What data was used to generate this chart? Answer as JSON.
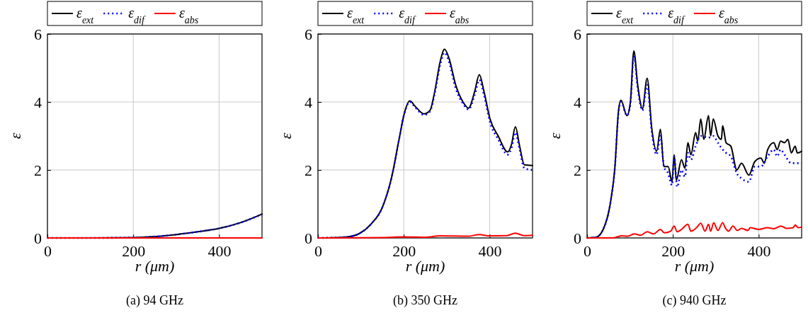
{
  "chart_data": [
    {
      "type": "line",
      "xlabel": "r (μm)",
      "ylabel": "ε",
      "annotations": [
        "(a) 94 GHz"
      ],
      "xlim": [
        0,
        500
      ],
      "ylim": [
        0,
        6
      ],
      "xticks": [
        0,
        200,
        400
      ],
      "yticks": [
        0,
        2,
        4,
        6
      ],
      "grid": true,
      "legend": "top",
      "series": [
        {
          "name": "ε$_{ext}$",
          "color": "#000000",
          "line_style": "solid",
          "x": [
            0,
            100,
            200,
            250,
            300,
            350,
            400,
            450,
            500
          ],
          "values": [
            0,
            0,
            0.01,
            0.04,
            0.1,
            0.18,
            0.28,
            0.45,
            0.7
          ]
        },
        {
          "name": "ε$_{dif}$",
          "color": "#0000ff",
          "line_style": "dotted",
          "x": [
            0,
            100,
            200,
            250,
            300,
            350,
            400,
            450,
            500
          ],
          "values": [
            0,
            0,
            0.01,
            0.04,
            0.1,
            0.18,
            0.28,
            0.45,
            0.7
          ]
        },
        {
          "name": "ε$_{abs}$",
          "color": "#ff0000",
          "line_style": "solid",
          "x": [
            0,
            250,
            500
          ],
          "values": [
            0,
            0,
            0
          ]
        }
      ]
    },
    {
      "type": "line",
      "xlabel": "r (μm)",
      "ylabel": "ε",
      "annotations": [
        "(b) 350 GHz"
      ],
      "xlim": [
        0,
        500
      ],
      "ylim": [
        0,
        6
      ],
      "xticks": [
        0,
        200,
        400
      ],
      "yticks": [
        0,
        2,
        4,
        6
      ],
      "grid": true,
      "legend": "top",
      "series": [
        {
          "name": "ε$_{ext}$",
          "color": "#000000",
          "line_style": "solid",
          "x": [
            0,
            40,
            68,
            95,
            123,
            150,
            172,
            189,
            200,
            214,
            228,
            247,
            261,
            272,
            285,
            295,
            305,
            321,
            338,
            351,
            365,
            376,
            387,
            401,
            420,
            442,
            451,
            460,
            470,
            481,
            500
          ],
          "values": [
            0,
            0.01,
            0.03,
            0.12,
            0.4,
            0.9,
            1.8,
            2.9,
            3.6,
            4.03,
            3.85,
            3.65,
            3.75,
            4.3,
            5.2,
            5.55,
            5.3,
            4.5,
            4.0,
            3.82,
            4.3,
            4.8,
            4.3,
            3.5,
            3.0,
            2.53,
            2.75,
            3.27,
            2.7,
            2.15,
            2.13
          ]
        },
        {
          "name": "ε$_{dif}$",
          "color": "#0000ff",
          "line_style": "dotted",
          "x": [
            0,
            40,
            68,
            95,
            123,
            150,
            172,
            189,
            200,
            214,
            228,
            247,
            261,
            272,
            285,
            295,
            305,
            321,
            338,
            351,
            365,
            376,
            387,
            401,
            420,
            442,
            451,
            460,
            470,
            481,
            500
          ],
          "values": [
            0,
            0.01,
            0.03,
            0.12,
            0.4,
            0.9,
            1.8,
            2.9,
            3.6,
            4.0,
            3.82,
            3.62,
            3.72,
            4.25,
            5.1,
            5.45,
            5.2,
            4.4,
            3.95,
            3.78,
            4.2,
            4.65,
            4.2,
            3.4,
            2.9,
            2.45,
            2.65,
            3.1,
            2.6,
            2.05,
            2.0
          ]
        },
        {
          "name": "ε$_{abs}$",
          "color": "#ff0000",
          "line_style": "solid",
          "x": [
            0,
            150,
            200,
            250,
            285,
            350,
            376,
            400,
            440,
            460,
            480,
            500
          ],
          "values": [
            0,
            0.01,
            0.03,
            0.02,
            0.06,
            0.05,
            0.1,
            0.06,
            0.07,
            0.14,
            0.07,
            0.08
          ]
        }
      ]
    },
    {
      "type": "line",
      "xlabel": "r (μm)",
      "ylabel": "ε",
      "annotations": [
        "(c) 940 GHz"
      ],
      "xlim": [
        0,
        500
      ],
      "ylim": [
        0,
        6
      ],
      "xticks": [
        0,
        200,
        400
      ],
      "yticks": [
        0,
        2,
        4,
        6
      ],
      "grid": true,
      "legend": "top",
      "series": [
        {
          "name": "ε$_{ext}$",
          "color": "#000000",
          "line_style": "solid",
          "x": [
            0,
            21,
            37.5,
            54,
            65,
            73,
            79,
            93,
            101,
            109,
            118,
            129,
            140,
            151,
            162,
            171,
            179,
            189,
            198,
            203,
            208,
            220,
            228,
            235,
            242,
            253,
            258,
            265,
            272,
            283,
            288,
            294,
            305,
            313,
            316,
            324,
            335,
            349,
            360,
            377,
            391,
            405,
            413,
            421,
            435,
            443,
            451,
            460,
            468,
            476,
            485,
            490,
            500
          ],
          "values": [
            0,
            0.02,
            0.25,
            1.0,
            2.1,
            3.7,
            4.05,
            3.6,
            4.0,
            5.5,
            4.5,
            3.8,
            4.7,
            3.2,
            2.55,
            3.2,
            2.1,
            2.1,
            1.65,
            2.45,
            1.7,
            2.3,
            2.05,
            2.8,
            2.45,
            3.1,
            2.85,
            3.5,
            2.9,
            3.6,
            3.0,
            3.5,
            3.0,
            2.9,
            3.3,
            2.8,
            2.7,
            2.0,
            2.2,
            1.85,
            2.25,
            2.35,
            2.2,
            2.6,
            2.8,
            2.6,
            2.85,
            2.8,
            2.9,
            2.5,
            2.7,
            2.5,
            2.55
          ]
        },
        {
          "name": "ε$_{dif}$",
          "color": "#0000ff",
          "line_style": "dotted",
          "x": [
            0,
            21,
            37.5,
            54,
            65,
            73,
            79,
            93,
            101,
            109,
            118,
            129,
            140,
            151,
            162,
            171,
            179,
            189,
            198,
            203,
            210,
            220,
            228,
            235,
            242,
            253,
            265,
            283,
            294,
            305,
            316,
            324,
            335,
            349,
            360,
            377,
            391,
            405,
            421,
            435,
            443,
            451,
            460,
            476,
            490,
            500
          ],
          "values": [
            0,
            0.02,
            0.25,
            1.0,
            2.1,
            3.65,
            4.0,
            3.6,
            3.95,
            5.35,
            4.4,
            3.75,
            4.5,
            3.1,
            2.45,
            3.0,
            2.1,
            1.9,
            1.55,
            2.4,
            1.5,
            2.0,
            1.8,
            2.5,
            2.3,
            2.7,
            3.0,
            2.95,
            3.0,
            2.8,
            2.6,
            2.5,
            2.4,
            1.9,
            1.75,
            1.65,
            2.1,
            2.1,
            2.4,
            2.6,
            2.4,
            2.6,
            2.45,
            2.2,
            2.2,
            2.2
          ]
        },
        {
          "name": "ε$_{abs}$",
          "color": "#ff0000",
          "line_style": "solid",
          "x": [
            0,
            60,
            70,
            80,
            95,
            110,
            125,
            140,
            155,
            171,
            180,
            195,
            203,
            210,
            220,
            235,
            242,
            255,
            265,
            275,
            283,
            288,
            295,
            305,
            316,
            322,
            330,
            340,
            350,
            360,
            375,
            380,
            400,
            420,
            435,
            452,
            465,
            480,
            485,
            492,
            500
          ],
          "values": [
            0,
            0,
            0.03,
            0.06,
            0.05,
            0.12,
            0.08,
            0.18,
            0.12,
            0.25,
            0.15,
            0.2,
            0.35,
            0.18,
            0.25,
            0.4,
            0.2,
            0.3,
            0.43,
            0.2,
            0.4,
            0.2,
            0.45,
            0.22,
            0.45,
            0.3,
            0.2,
            0.35,
            0.22,
            0.28,
            0.22,
            0.3,
            0.25,
            0.3,
            0.27,
            0.35,
            0.28,
            0.3,
            0.38,
            0.3,
            0.32
          ]
        }
      ]
    }
  ]
}
